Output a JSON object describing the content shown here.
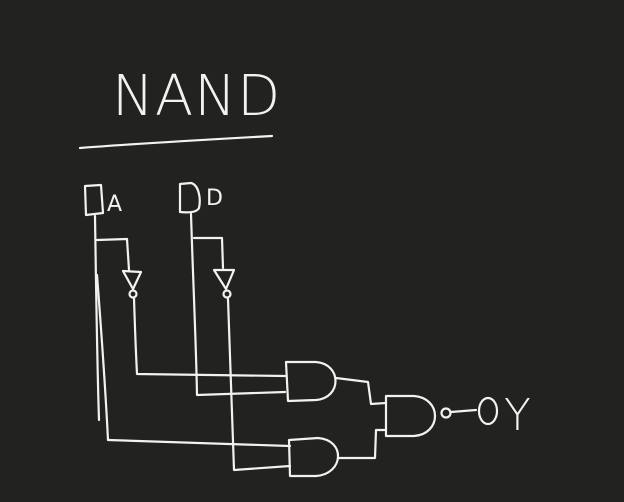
{
  "title": "NAND",
  "inputs": [
    {
      "label": "A"
    },
    {
      "label": "D"
    }
  ],
  "output": {
    "label": "Y"
  },
  "colors": {
    "background": "#222220",
    "ink": "#f2f2f0"
  }
}
